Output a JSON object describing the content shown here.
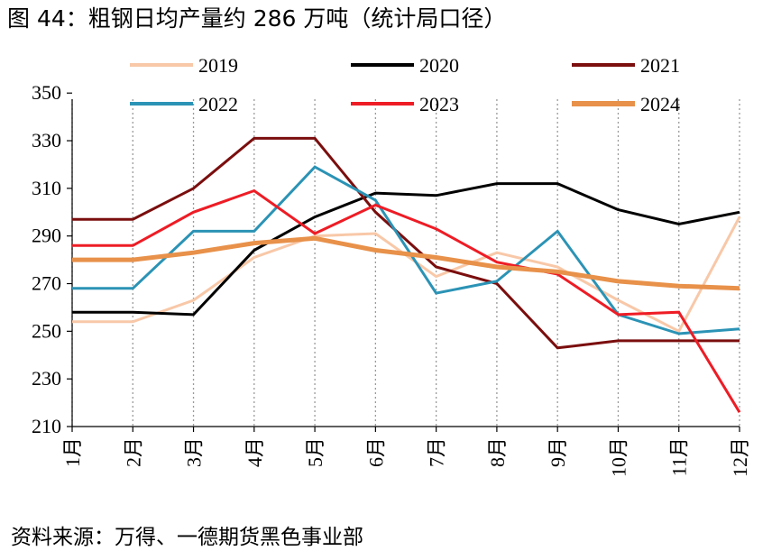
{
  "figure": {
    "title": "图 44：粗钢日均产量约 286 万吨（统计局口径）",
    "source": "资料来源：万得、一德期货黑色事业部"
  },
  "chart_data": {
    "type": "line",
    "title": "粗钢日均产量约 286 万吨（统计局口径）",
    "categories": [
      "1月",
      "2月",
      "3月",
      "4月",
      "5月",
      "6月",
      "7月",
      "8月",
      "9月",
      "10月",
      "11月",
      "12月"
    ],
    "ylim": [
      210,
      355
    ],
    "yticks": [
      210,
      230,
      250,
      270,
      290,
      310,
      330,
      350
    ],
    "grid": "vertical dotted",
    "legend_position": "top",
    "series": [
      {
        "name": "2019",
        "color": "#f8c8a8",
        "width": 3,
        "values": [
          254,
          254,
          263,
          281,
          290,
          291,
          273,
          283,
          277,
          263,
          250,
          298
        ]
      },
      {
        "name": "2020",
        "color": "#000000",
        "width": 3,
        "values": [
          258,
          258,
          257,
          284,
          298,
          308,
          307,
          312,
          312,
          301,
          295,
          300
        ]
      },
      {
        "name": "2021",
        "color": "#7b0e0e",
        "width": 3,
        "values": [
          297,
          297,
          310,
          331,
          331,
          300,
          277,
          270,
          243,
          246,
          246,
          246
        ]
      },
      {
        "name": "2022",
        "color": "#2b93b5",
        "width": 3,
        "values": [
          268,
          268,
          292,
          292,
          319,
          305,
          266,
          271,
          292,
          257,
          249,
          251
        ]
      },
      {
        "name": "2023",
        "color": "#ee1c25",
        "width": 3,
        "values": [
          286,
          286,
          300,
          309,
          291,
          303,
          293,
          279,
          274,
          257,
          258,
          216
        ]
      },
      {
        "name": "2024",
        "color": "#e8914a",
        "width": 5,
        "values": [
          280,
          280,
          283,
          287,
          289,
          284,
          281,
          277,
          275,
          271,
          269,
          268
        ]
      }
    ]
  }
}
